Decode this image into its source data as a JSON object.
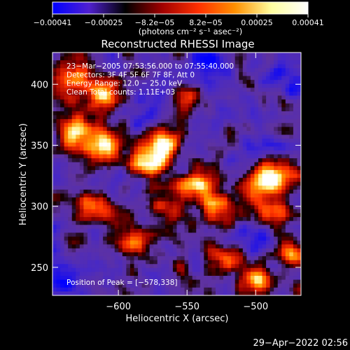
{
  "chart_data": {
    "type": "heatmap",
    "title": "Reconstructed RHESSI Image",
    "xlabel": "Heliocentric X (arcsec)",
    "ylabel": "Heliocentric Y (arcsec)",
    "xlim": [
      -648,
      -467
    ],
    "ylim": [
      227,
      426
    ],
    "xticks": [
      -600,
      -550,
      -500
    ],
    "yticks": [
      250,
      300,
      350,
      400
    ],
    "xtick_labels": [
      "−600",
      "−550",
      "−500"
    ],
    "ytick_labels": [
      "250",
      "300",
      "350",
      "400"
    ],
    "colorbar": {
      "range": [
        -0.00041,
        0.00041
      ],
      "tick_labels": [
        "−0.00041",
        "−0.00025",
        "−8.2e−05",
        "8.2e−05",
        "0.00025",
        "0.00041"
      ],
      "unit_text": "(photons cm⁻² s⁻¹ asec⁻²)",
      "colors": [
        "#0000ff",
        "#5020d0",
        "#000000",
        "#a00000",
        "#ff3000",
        "#ff9000",
        "#ffffa0",
        "#ffffff"
      ]
    },
    "annotations": [
      "23−Mar−2005 07:53:56.000 to 07:55:40.000",
      "Detectors: 3F 4F 5F 6F 7F 8F, Att 0",
      "Energy Range: 12.0 − 25.0 keV",
      "Clean     Total counts: 1.11E+03"
    ],
    "peak_text": "Position of Peak = [−578,338]",
    "peak": [
      -578,
      338
    ],
    "bright_regions": [
      {
        "x": -630,
        "y": 408,
        "intensity": 0.8
      },
      {
        "x": -610,
        "y": 392,
        "intensity": 0.9
      },
      {
        "x": -632,
        "y": 360,
        "intensity": 0.9
      },
      {
        "x": -612,
        "y": 350,
        "intensity": 1.0
      },
      {
        "x": -578,
        "y": 338,
        "intensity": 1.0
      },
      {
        "x": -568,
        "y": 352,
        "intensity": 0.85
      },
      {
        "x": -548,
        "y": 392,
        "intensity": 0.7
      },
      {
        "x": -545,
        "y": 318,
        "intensity": 0.85
      },
      {
        "x": -527,
        "y": 300,
        "intensity": 0.8
      },
      {
        "x": -498,
        "y": 318,
        "intensity": 0.85
      },
      {
        "x": -482,
        "y": 328,
        "intensity": 0.8
      },
      {
        "x": -488,
        "y": 292,
        "intensity": 0.7
      },
      {
        "x": -620,
        "y": 298,
        "intensity": 0.65
      },
      {
        "x": -588,
        "y": 268,
        "intensity": 0.65
      },
      {
        "x": -520,
        "y": 258,
        "intensity": 0.7
      },
      {
        "x": -500,
        "y": 240,
        "intensity": 0.75
      },
      {
        "x": -475,
        "y": 260,
        "intensity": 0.7
      },
      {
        "x": -565,
        "y": 300,
        "intensity": 0.6
      }
    ],
    "dark_regions": [
      {
        "x": -535,
        "y": 415,
        "intensity": 0.8
      },
      {
        "x": -480,
        "y": 410,
        "intensity": 0.6
      },
      {
        "x": -500,
        "y": 350,
        "intensity": 0.7
      },
      {
        "x": -640,
        "y": 240,
        "intensity": 0.7
      },
      {
        "x": -582,
        "y": 380,
        "intensity": 0.5
      },
      {
        "x": -505,
        "y": 272,
        "intensity": 0.6
      }
    ]
  },
  "footer": {
    "date_text": "29−Apr−2022 02:56"
  }
}
